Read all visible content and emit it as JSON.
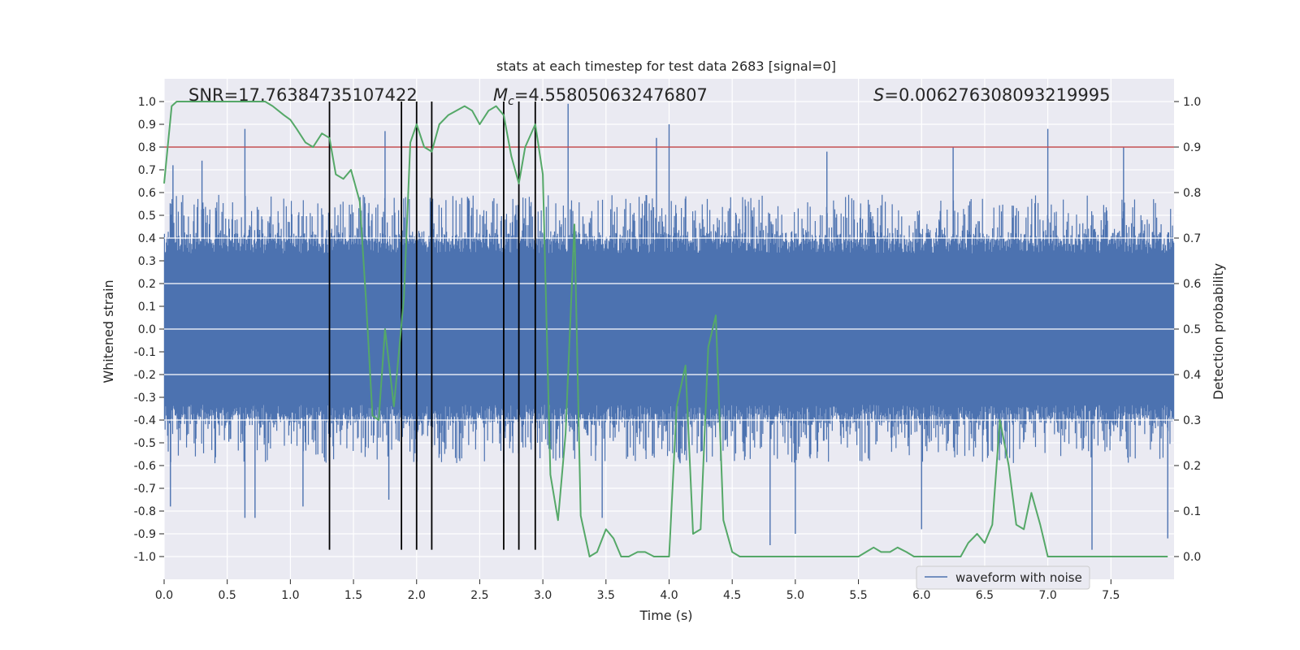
{
  "chart_data": {
    "type": "line",
    "title": "stats at each timestep for test data 2683 [signal=0]",
    "xlabel": "Time (s)",
    "ylabel_left": "Whitened strain",
    "ylabel_right": "Detection probability",
    "xlim": [
      0,
      8.0
    ],
    "ylim_left": [
      -1.1,
      1.1
    ],
    "ylim_right": [
      -0.05,
      1.05
    ],
    "x_ticks": [
      "0.0",
      "0.5",
      "1.0",
      "1.5",
      "2.0",
      "2.5",
      "3.0",
      "3.5",
      "4.0",
      "4.5",
      "5.0",
      "5.5",
      "6.0",
      "6.5",
      "7.0",
      "7.5"
    ],
    "y_ticks_left": [
      "1.0",
      "0.9",
      "0.8",
      "0.7",
      "0.6",
      "0.5",
      "0.4",
      "0.3",
      "0.2",
      "0.1",
      "0.0",
      "-0.1",
      "-0.2",
      "-0.3",
      "-0.4",
      "-0.5",
      "-0.6",
      "-0.7",
      "-0.8",
      "-0.9",
      "-1.0"
    ],
    "y_ticks_right": [
      "1.0",
      "0.9",
      "0.8",
      "0.7",
      "0.6",
      "0.5",
      "0.4",
      "0.3",
      "0.2",
      "0.1",
      "0.0"
    ],
    "annotations": {
      "snr": "SNR=17.76384735107422",
      "mc_symbol": "M",
      "mc_sub": "c",
      "mc_value": "=4.558050632476807",
      "s_symbol": "S",
      "s_value": "=0.006276308093219995"
    },
    "legend": {
      "label": "waveform with noise",
      "placement": "bottom-right"
    },
    "threshold": {
      "value": 0.9,
      "axis": "right",
      "color": "#c44e52"
    },
    "trigger_times": [
      1.31,
      1.88,
      2.0,
      2.12,
      2.69,
      2.81,
      2.94
    ],
    "trigger_range_left": [
      -0.97,
      1.0
    ],
    "waveform": {
      "name": "waveform with noise",
      "color": "#4c72b0",
      "samples": 1600,
      "core_amplitude": 0.37,
      "typical_peak": 0.58,
      "spikes": [
        {
          "t": 0.05,
          "v": -0.78
        },
        {
          "t": 0.07,
          "v": 0.72
        },
        {
          "t": 0.3,
          "v": 0.74
        },
        {
          "t": 0.64,
          "v": 0.88
        },
        {
          "t": 0.64,
          "v": -0.83
        },
        {
          "t": 0.72,
          "v": -0.83
        },
        {
          "t": 1.1,
          "v": -0.78
        },
        {
          "t": 1.75,
          "v": 0.87
        },
        {
          "t": 1.78,
          "v": -0.75
        },
        {
          "t": 3.2,
          "v": 0.99
        },
        {
          "t": 3.47,
          "v": -0.83
        },
        {
          "t": 3.9,
          "v": 0.84
        },
        {
          "t": 4.0,
          "v": 0.9
        },
        {
          "t": 4.8,
          "v": -0.95
        },
        {
          "t": 5.0,
          "v": -0.9
        },
        {
          "t": 5.25,
          "v": 0.78
        },
        {
          "t": 6.0,
          "v": -0.88
        },
        {
          "t": 6.25,
          "v": 0.8
        },
        {
          "t": 7.0,
          "v": 0.88
        },
        {
          "t": 7.35,
          "v": -0.97
        },
        {
          "t": 7.6,
          "v": 0.8
        },
        {
          "t": 7.95,
          "v": -0.92
        }
      ]
    },
    "probability": {
      "name": "detection probability",
      "color": "#55a868",
      "x": [
        0,
        0.06,
        0.1,
        0.2,
        0.4,
        0.6,
        0.8,
        0.86,
        0.95,
        1.0,
        1.05,
        1.12,
        1.18,
        1.25,
        1.31,
        1.36,
        1.42,
        1.48,
        1.55,
        1.6,
        1.65,
        1.7,
        1.75,
        1.82,
        1.9,
        1.95,
        2.0,
        2.06,
        2.12,
        2.18,
        2.25,
        2.38,
        2.44,
        2.5,
        2.57,
        2.63,
        2.69,
        2.75,
        2.81,
        2.86,
        2.94,
        3.0,
        3.06,
        3.12,
        3.18,
        3.25,
        3.3,
        3.37,
        3.43,
        3.5,
        3.56,
        3.62,
        3.68,
        3.75,
        3.81,
        3.88,
        3.94,
        4.0,
        4.06,
        4.13,
        4.19,
        4.25,
        4.31,
        4.37,
        4.43,
        4.5,
        4.56,
        4.62,
        4.68,
        4.75,
        5.5,
        5.56,
        5.62,
        5.68,
        5.75,
        5.81,
        5.88,
        5.94,
        6.0,
        6.06,
        6.12,
        6.19,
        6.25,
        6.31,
        6.37,
        6.44,
        6.5,
        6.56,
        6.62,
        6.69,
        6.75,
        6.81,
        6.87,
        6.94,
        7.0,
        7.06,
        7.12,
        7.2,
        7.3,
        7.35,
        7.5,
        7.7,
        7.8,
        7.95
      ],
      "y": [
        0.82,
        0.99,
        1.0,
        1.0,
        1.0,
        1.0,
        1.0,
        0.99,
        0.97,
        0.96,
        0.94,
        0.91,
        0.9,
        0.93,
        0.92,
        0.84,
        0.83,
        0.85,
        0.78,
        0.56,
        0.31,
        0.3,
        0.5,
        0.33,
        0.57,
        0.91,
        0.95,
        0.9,
        0.89,
        0.95,
        0.97,
        0.99,
        0.98,
        0.95,
        0.98,
        0.99,
        0.97,
        0.88,
        0.82,
        0.9,
        0.95,
        0.84,
        0.18,
        0.08,
        0.27,
        0.73,
        0.09,
        0.0,
        0.01,
        0.06,
        0.04,
        0.0,
        0.0,
        0.01,
        0.01,
        0.0,
        0.0,
        0.0,
        0.33,
        0.42,
        0.05,
        0.06,
        0.46,
        0.53,
        0.08,
        0.01,
        0.0,
        0.0,
        0.0,
        0.0,
        0.0,
        0.01,
        0.02,
        0.01,
        0.01,
        0.02,
        0.01,
        0.0,
        0.0,
        0.0,
        0.0,
        0.0,
        0.0,
        0.0,
        0.03,
        0.05,
        0.03,
        0.07,
        0.3,
        0.2,
        0.07,
        0.06,
        0.14,
        0.07,
        0.0,
        0.0,
        0.0,
        0.0,
        0.0,
        0.0,
        0.0,
        0.0,
        0.0,
        0.0
      ]
    },
    "colors": {
      "plot_bg": "#eaeaf2",
      "grid": "#ffffff",
      "trigger": "#000000",
      "legend_bg": "#eaeaf2",
      "legend_border": "#cccccc"
    }
  }
}
